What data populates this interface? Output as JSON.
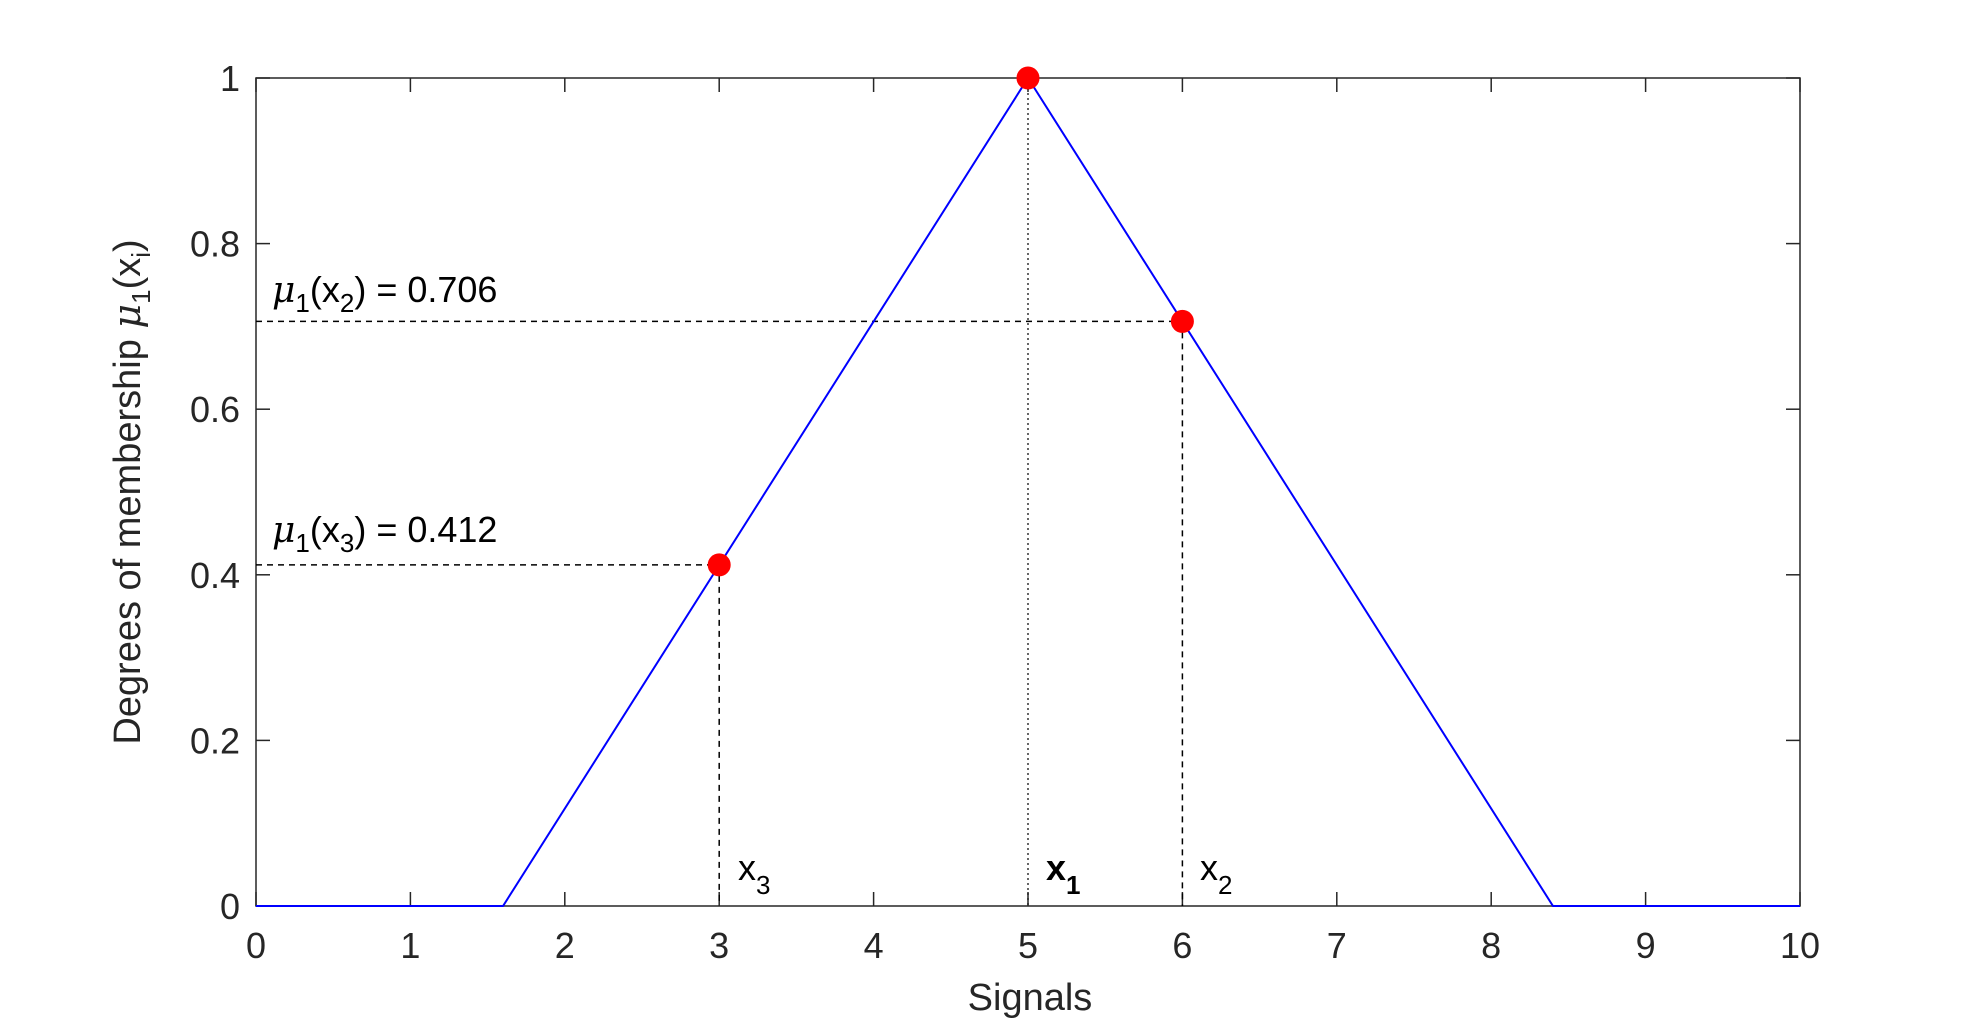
{
  "chart_data": {
    "type": "line",
    "title": "",
    "xlabel": "Signals",
    "ylabel": {
      "main": "Degrees of membership ",
      "mu": "μ",
      "sub1": "1",
      "paren_open": "(x",
      "subi": "i",
      "paren_close": ")"
    },
    "xlim": [
      0,
      10
    ],
    "ylim": [
      0,
      1
    ],
    "x_ticks": [
      0,
      1,
      2,
      3,
      4,
      5,
      6,
      7,
      8,
      9,
      10
    ],
    "y_ticks": [
      {
        "value": 0,
        "label": "0"
      },
      {
        "value": 0.2,
        "label": "0.2"
      },
      {
        "value": 0.4,
        "label": "0.4"
      },
      {
        "value": 0.6,
        "label": "0.6"
      },
      {
        "value": 0.8,
        "label": "0.8"
      },
      {
        "value": 1,
        "label": "1"
      }
    ],
    "grid": false,
    "series": [
      {
        "color": "#0000ff",
        "x": [
          0,
          1.6,
          5,
          8.4,
          10
        ],
        "y": [
          0,
          0,
          1,
          0,
          0
        ]
      }
    ],
    "points": {
      "color": "#ff0000",
      "x": [
        3,
        5,
        6
      ],
      "y": [
        0.412,
        1,
        0.706
      ]
    },
    "annotations": {
      "mu_x2": {
        "mu": "μ",
        "sub1": "1",
        "open": "(x",
        "sub": "2",
        "close": ") = 0.706"
      },
      "mu_x3": {
        "mu": "μ",
        "sub1": "1",
        "open": "(x",
        "sub": "3",
        "close": ") = 0.412"
      },
      "x3_label": {
        "base": "x",
        "sub": "3"
      },
      "x1_label": {
        "base": "x",
        "sub": "1"
      },
      "x2_label": {
        "base": "x",
        "sub": "2"
      }
    }
  }
}
